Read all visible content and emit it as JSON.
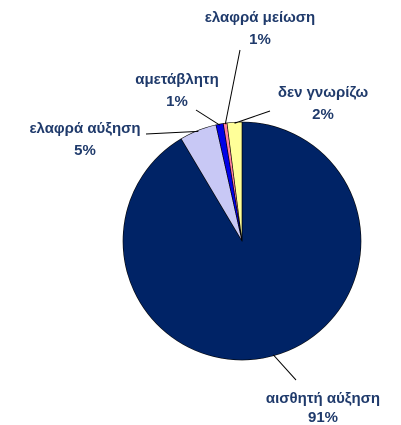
{
  "chart_data": {
    "type": "pie",
    "title": "",
    "slices": [
      {
        "label": "αισθητή αύξηση",
        "value": 91,
        "value_text": "91%",
        "color": "#002366"
      },
      {
        "label": "ελαφρά αύξηση",
        "value": 5,
        "value_text": "5%",
        "color": "#c8c8f5"
      },
      {
        "label": "αμετάβλητη",
        "value": 1,
        "value_text": "1%",
        "color": "#0000e6"
      },
      {
        "label": "ελαφρά μείωση",
        "value": 0.5,
        "value_text": "1%",
        "color": "#ff80a0"
      },
      {
        "label": "δεν γνωρίζω",
        "value": 2,
        "value_text": "2%",
        "color": "#ffff99"
      }
    ],
    "start_angle_deg": 0,
    "direction": "clockwise",
    "legend": "none"
  }
}
